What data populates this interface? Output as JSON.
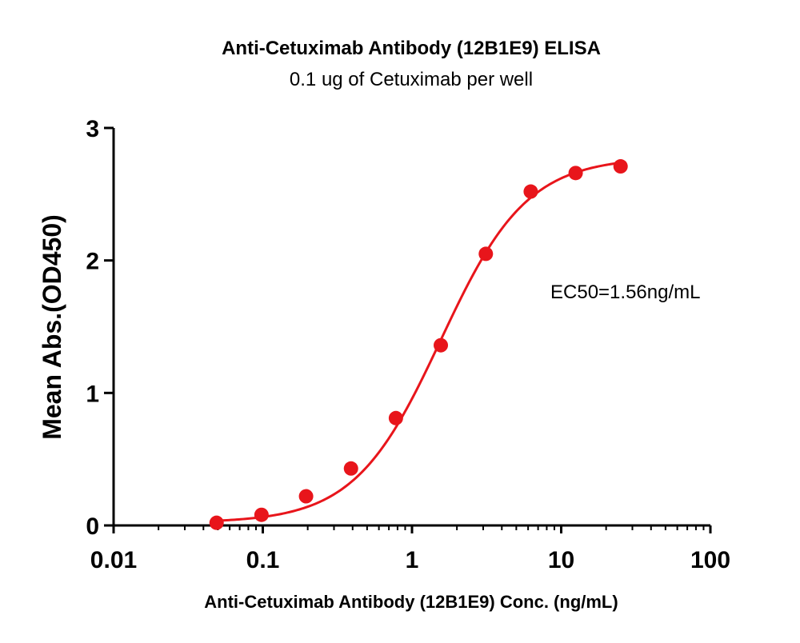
{
  "chart_data": {
    "type": "scatter",
    "title": "Anti-Cetuximab Antibody (12B1E9) ELISA",
    "subtitle": "0.1 ug of Cetuximab per well",
    "xlabel": "Anti-Cetuximab Antibody (12B1E9) Conc. (ng/mL)",
    "ylabel": "Mean Abs.(OD450)",
    "xscale": "log",
    "xlim": [
      0.01,
      100
    ],
    "ylim": [
      0,
      3
    ],
    "xticks": [
      "0.01",
      "0.1",
      "1",
      "10",
      "100"
    ],
    "yticks": [
      "0",
      "1",
      "2",
      "3"
    ],
    "grid": false,
    "annotation": "EC50=1.56ng/mL",
    "color": "#e8151b",
    "series": [
      {
        "x": [
          0.049,
          0.098,
          0.195,
          0.39,
          0.78,
          1.56,
          3.125,
          6.25,
          12.5,
          25
        ],
        "y": [
          0.02,
          0.08,
          0.22,
          0.43,
          0.81,
          1.36,
          2.05,
          2.52,
          2.66,
          2.71
        ]
      }
    ],
    "fit": {
      "model": "4PL",
      "bottom": 0.02,
      "top": 2.78,
      "ec50": 1.56,
      "hill": 1.5
    }
  }
}
